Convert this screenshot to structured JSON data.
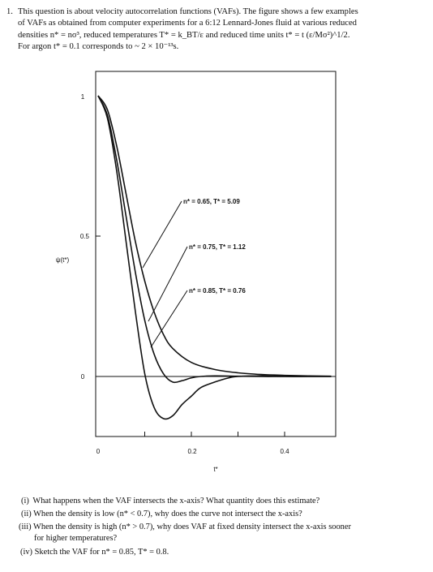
{
  "intro": {
    "number": "1.",
    "lines": [
      "This question is about velocity autocorrelation functions (VAFs). The figure shows a few examples",
      "of VAFs as obtained from computer experiments for a 6:12 Lennard-Jones fluid at various reduced",
      "densities n* = nσ³, reduced temperatures T* = k_BT/ε and reduced time units t* = t (ε/Mσ²)^1/2.",
      "For argon t* = 0.1 corresponds to ~ 2 × 10⁻¹³s."
    ]
  },
  "chart_data": {
    "type": "line",
    "title": "",
    "xlabel": "t*",
    "ylabel": "ψ(t*)",
    "xlim": [
      0,
      0.5
    ],
    "ylim": [
      -0.2,
      1.15
    ],
    "x_ticks": [
      "0",
      "0.2",
      "0.4"
    ],
    "y_ticks": [
      "0",
      "0.5",
      "1"
    ],
    "grid": false,
    "series": [
      {
        "name": "n* = 0.65, T* = 5.09",
        "x": [
          0,
          0.02,
          0.04,
          0.06,
          0.08,
          0.1,
          0.12,
          0.14,
          0.16,
          0.2,
          0.25,
          0.3,
          0.35,
          0.4,
          0.45,
          0.5
        ],
        "values": [
          1.0,
          0.95,
          0.82,
          0.65,
          0.48,
          0.34,
          0.23,
          0.15,
          0.1,
          0.05,
          0.025,
          0.013,
          0.007,
          0.004,
          0.002,
          0.001
        ]
      },
      {
        "name": "n* = 0.75, T* = 1.12",
        "x": [
          0,
          0.02,
          0.04,
          0.06,
          0.08,
          0.1,
          0.12,
          0.14,
          0.16,
          0.18,
          0.2,
          0.22,
          0.25,
          0.3,
          0.35,
          0.4,
          0.5
        ],
        "values": [
          1.0,
          0.93,
          0.77,
          0.57,
          0.37,
          0.2,
          0.08,
          0.01,
          -0.02,
          -0.015,
          -0.005,
          0.0,
          0.002,
          0.001,
          0.0,
          0.0,
          0.0
        ]
      },
      {
        "name": "n* = 0.85, T* = 0.76",
        "x": [
          0,
          0.02,
          0.04,
          0.06,
          0.08,
          0.1,
          0.12,
          0.14,
          0.16,
          0.18,
          0.2,
          0.22,
          0.25,
          0.28,
          0.3,
          0.35,
          0.4,
          0.45,
          0.5
        ],
        "values": [
          1.0,
          0.92,
          0.73,
          0.48,
          0.23,
          0.01,
          -0.11,
          -0.15,
          -0.14,
          -0.1,
          -0.07,
          -0.04,
          -0.02,
          -0.005,
          0.0,
          0.002,
          0.0,
          0.0,
          0.0
        ]
      }
    ]
  },
  "questions": [
    {
      "num": "(i)",
      "lines": [
        "What happens when the VAF intersects the x-axis? What quantity does this estimate?"
      ]
    },
    {
      "num": "(ii)",
      "lines": [
        "When the density is low (n* < 0.7), why does the curve not intersect the x-axis?"
      ]
    },
    {
      "num": "(iii)",
      "lines": [
        "When the density is high (n* > 0.7), why does VAF at fixed density intersect the x-axis sooner",
        "for higher temperatures?"
      ]
    },
    {
      "num": "(iv)",
      "lines": [
        "Sketch the VAF for n* = 0.85, T* = 0.8."
      ]
    }
  ]
}
